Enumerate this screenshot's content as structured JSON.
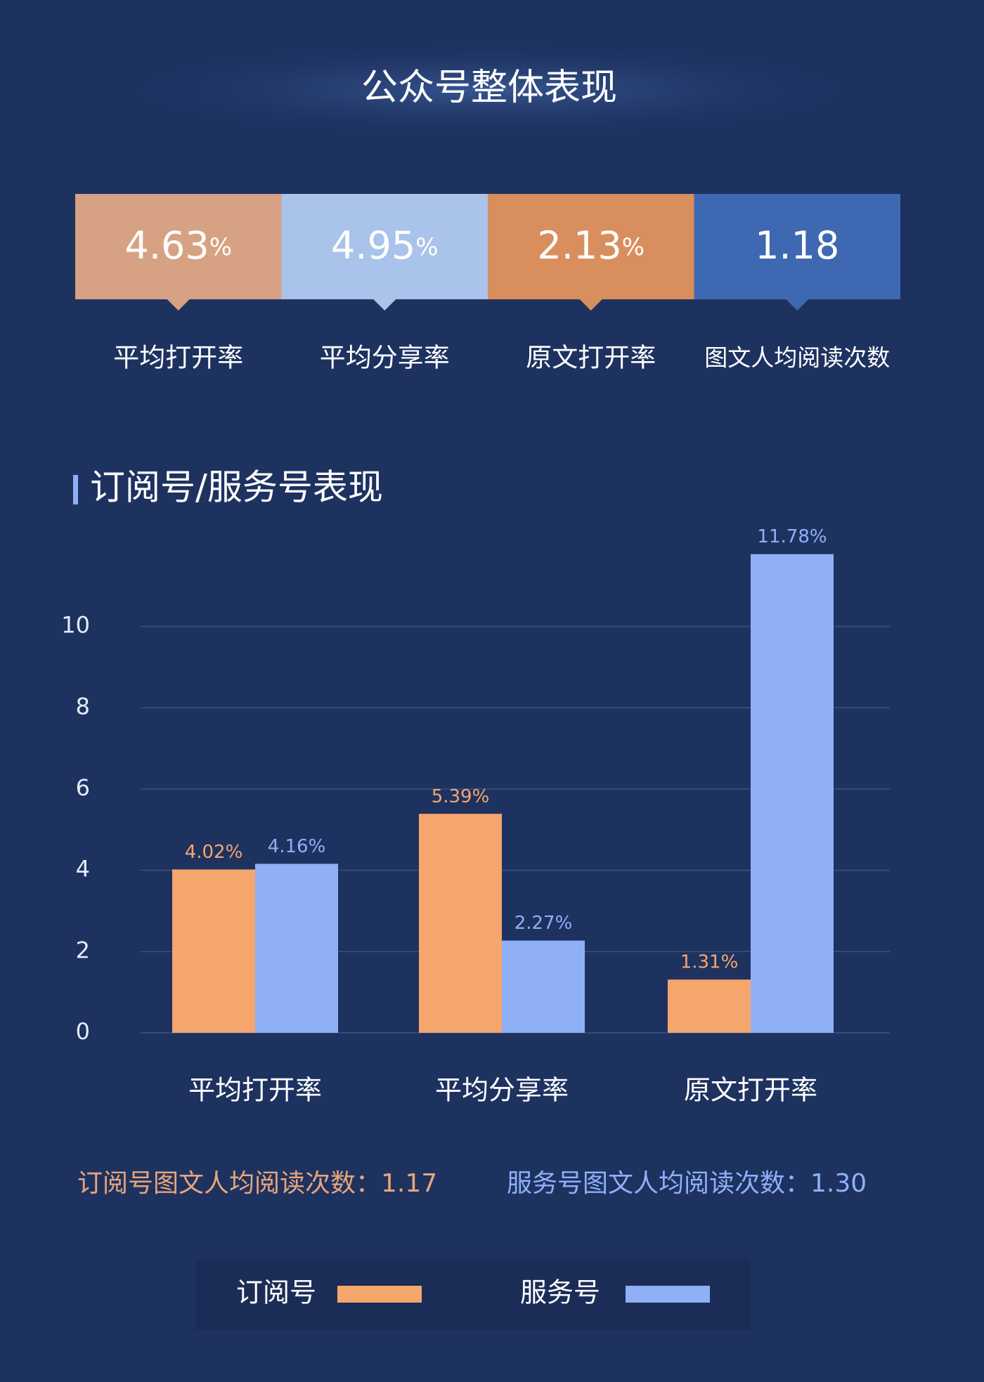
{
  "header": {
    "title": "公众号整体表现"
  },
  "cards": [
    {
      "value": 4.63,
      "unit": "%",
      "label": "平均打开率",
      "color": "#d6a283"
    },
    {
      "value": 4.95,
      "unit": "%",
      "label": "平均分享率",
      "color": "#a9c3ea"
    },
    {
      "value": 2.13,
      "unit": "%",
      "label": "原文打开率",
      "color": "#d98e5e"
    },
    {
      "value": 1.18,
      "label": "图文人均阅读次数",
      "color": "#3f68b3"
    }
  ],
  "chart_data": {
    "type": "bar",
    "title": "订阅号/服务号表现",
    "categories": [
      "平均打开率",
      "平均分享率",
      "原文打开率"
    ],
    "series": [
      {
        "name": "订阅号",
        "color": "#f5a66c",
        "values": [
          4.02,
          5.39,
          1.31
        ],
        "value_labels": [
          "4.02%",
          "5.39%",
          "1.31%"
        ]
      },
      {
        "name": "服务号",
        "color": "#8fb0f7",
        "values": [
          4.16,
          2.27,
          11.78
        ],
        "value_labels": [
          "4.16%",
          "2.27%",
          "11.78%"
        ]
      }
    ],
    "ylim": [
      0,
      12
    ],
    "yticks": [
      0,
      2,
      4,
      6,
      8,
      10
    ],
    "grid": true,
    "annotations": [
      "订阅号图文人均阅读次数：1.17",
      "服务号图文人均阅读次数：1.30"
    ]
  }
}
